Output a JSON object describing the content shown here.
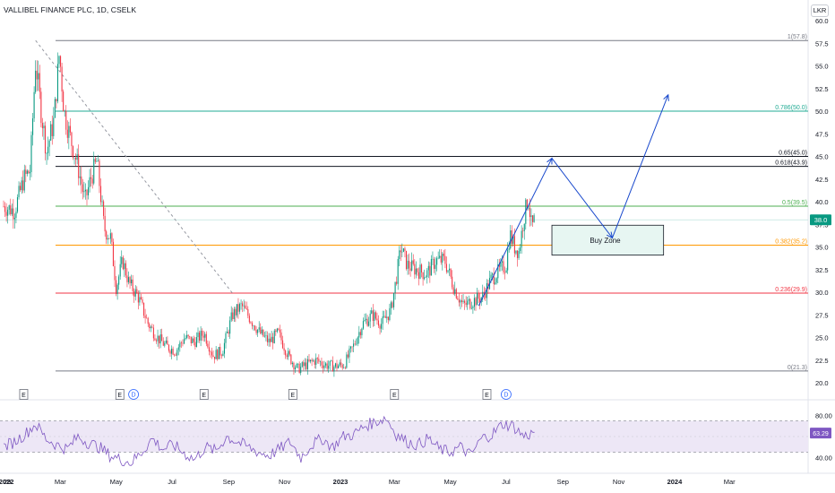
{
  "header": {
    "title": "VALLIBEL FINANCE PLC, 1D, CSELK",
    "currency": "LKR"
  },
  "colors": {
    "up": "#089981",
    "down": "#f23645",
    "fib_100": "#787b86",
    "fib_786": "#22ab94",
    "fib_65": "#131722",
    "fib_618": "#131722",
    "fib_5": "#4caf50",
    "fib_382": "#ff9800",
    "fib_236": "#f23645",
    "fib_0": "#787b86",
    "arrow": "#1848cc",
    "zone_fill": "#e7f6f2",
    "rsi_line": "#7e57c2",
    "rsi_band": "#ede7f6",
    "price_badge": "#089981",
    "rsi_badge": "#7e57c2"
  },
  "chart_data": [
    {
      "type": "candlestick",
      "title": "VALLIBEL FINANCE PLC, 1D, CSELK",
      "currency": "LKR",
      "x_tick_labels": [
        "29",
        "2022",
        "Mar",
        "May",
        "Jul",
        "Sep",
        "Nov",
        "2023",
        "Mar",
        "May",
        "Jul",
        "Sep",
        "Nov",
        "2024",
        "Mar"
      ],
      "x_tick_bold": [
        "2022",
        "2023",
        "2024"
      ],
      "y_tick_labels": [
        "20.0",
        "22.5",
        "25.0",
        "27.5",
        "30.0",
        "32.5",
        "35.0",
        "37.5",
        "40.0",
        "42.5",
        "45.0",
        "47.5",
        "50.0",
        "52.5",
        "55.0",
        "57.5",
        "60.0"
      ],
      "ylim": [
        20.0,
        60.0
      ],
      "last_price": "38.0",
      "price_path": [
        [
          "2021-12-29",
          39.5
        ],
        [
          "2022-01-10",
          39.0
        ],
        [
          "2022-01-20",
          42.5
        ],
        [
          "2022-01-27",
          43.5
        ],
        [
          "2022-02-02",
          55.5
        ],
        [
          "2022-02-08",
          50.0
        ],
        [
          "2022-02-14",
          45.5
        ],
        [
          "2022-02-22",
          49.0
        ],
        [
          "2022-02-28",
          56.5
        ],
        [
          "2022-03-05",
          50.0
        ],
        [
          "2022-03-12",
          47.0
        ],
        [
          "2022-03-20",
          44.0
        ],
        [
          "2022-03-28",
          40.0
        ],
        [
          "2022-04-03",
          42.5
        ],
        [
          "2022-04-10",
          44.5
        ],
        [
          "2022-04-18",
          37.0
        ],
        [
          "2022-04-25",
          36.0
        ],
        [
          "2022-05-01",
          30.5
        ],
        [
          "2022-05-08",
          33.5
        ],
        [
          "2022-05-15",
          31.0
        ],
        [
          "2022-05-25",
          29.5
        ],
        [
          "2022-06-05",
          26.5
        ],
        [
          "2022-06-15",
          25.0
        ],
        [
          "2022-06-25",
          24.0
        ],
        [
          "2022-07-05",
          23.5
        ],
        [
          "2022-07-15",
          25.0
        ],
        [
          "2022-07-25",
          24.5
        ],
        [
          "2022-08-05",
          25.5
        ],
        [
          "2022-08-15",
          23.0
        ],
        [
          "2022-08-25",
          23.5
        ],
        [
          "2022-09-05",
          27.5
        ],
        [
          "2022-09-15",
          28.5
        ],
        [
          "2022-09-25",
          27.0
        ],
        [
          "2022-10-05",
          25.5
        ],
        [
          "2022-10-15",
          24.5
        ],
        [
          "2022-10-25",
          25.5
        ],
        [
          "2022-11-05",
          23.0
        ],
        [
          "2022-11-15",
          21.5
        ],
        [
          "2022-11-25",
          22.0
        ],
        [
          "2022-12-05",
          22.5
        ],
        [
          "2022-12-15",
          22.0
        ],
        [
          "2022-12-25",
          21.8
        ],
        [
          "2023-01-05",
          22.0
        ],
        [
          "2023-01-15",
          24.0
        ],
        [
          "2023-01-25",
          26.5
        ],
        [
          "2023-02-05",
          27.5
        ],
        [
          "2023-02-15",
          26.5
        ],
        [
          "2023-02-25",
          28.0
        ],
        [
          "2023-03-03",
          31.5
        ],
        [
          "2023-03-08",
          35.0
        ],
        [
          "2023-03-15",
          33.0
        ],
        [
          "2023-03-25",
          32.5
        ],
        [
          "2023-04-05",
          32.0
        ],
        [
          "2023-04-15",
          33.5
        ],
        [
          "2023-04-25",
          33.5
        ],
        [
          "2023-05-05",
          30.5
        ],
        [
          "2023-05-15",
          28.5
        ],
        [
          "2023-05-25",
          29.0
        ],
        [
          "2023-06-05",
          29.5
        ],
        [
          "2023-06-15",
          31.5
        ],
        [
          "2023-06-25",
          32.5
        ],
        [
          "2023-07-01",
          33.0
        ],
        [
          "2023-07-05",
          36.5
        ],
        [
          "2023-07-10",
          35.0
        ],
        [
          "2023-07-15",
          34.5
        ],
        [
          "2023-07-20",
          38.0
        ],
        [
          "2023-07-25",
          40.5
        ],
        [
          "2023-07-29",
          37.0
        ],
        [
          "2023-08-01",
          38.0
        ]
      ],
      "fib_levels": [
        {
          "ratio": 1,
          "label": "1(57.8)",
          "price": 57.8,
          "color_key": "fib_100"
        },
        {
          "ratio": 0.786,
          "label": "0.786(50.0)",
          "price": 50.0,
          "color_key": "fib_786"
        },
        {
          "ratio": 0.65,
          "label": "0.65(45.0)",
          "price": 45.0,
          "color_key": "fib_65"
        },
        {
          "ratio": 0.618,
          "label": "0.618(43.9)",
          "price": 43.9,
          "color_key": "fib_618"
        },
        {
          "ratio": 0.5,
          "label": "0.5(39.5)",
          "price": 39.5,
          "color_key": "fib_5"
        },
        {
          "ratio": 0.382,
          "label": "0.382(35.2)",
          "price": 35.2,
          "color_key": "fib_382"
        },
        {
          "ratio": 0.236,
          "label": "0.236(29.9)",
          "price": 29.9,
          "color_key": "fib_236"
        },
        {
          "ratio": 0,
          "label": "0(21.3)",
          "price": 21.3,
          "color_key": "fib_0"
        }
      ],
      "buy_zone": {
        "label": "Buy Zone",
        "from": "2023-08-20",
        "to": "2023-12-20",
        "top": 37.4,
        "bottom": 34.1
      },
      "forecast_path": [
        [
          "2023-06-01",
          28.5
        ],
        [
          "2023-08-20",
          44.8
        ],
        [
          "2023-10-25",
          36.0
        ],
        [
          "2023-12-25",
          51.8
        ]
      ],
      "trend_line": {
        "from": [
          "2022-02-02",
          57.8
        ],
        "to": [
          "2022-09-05",
          29.9
        ]
      },
      "event_markers": [
        {
          "date": "2022-01-20",
          "kind": "E"
        },
        {
          "date": "2022-05-05",
          "kind": "E"
        },
        {
          "date": "2022-05-20",
          "kind": "D"
        },
        {
          "date": "2022-08-05",
          "kind": "E"
        },
        {
          "date": "2022-11-10",
          "kind": "E"
        },
        {
          "date": "2023-03-01",
          "kind": "E"
        },
        {
          "date": "2023-06-10",
          "kind": "E"
        },
        {
          "date": "2023-07-01",
          "kind": "D"
        }
      ]
    },
    {
      "type": "line",
      "series": [
        {
          "name": "",
          "values": [
            50,
            55,
            62,
            72,
            58,
            52,
            48,
            60,
            54,
            50,
            42,
            38,
            35,
            45,
            58,
            48,
            52,
            44,
            38,
            50,
            46,
            60,
            55,
            50,
            45,
            42,
            48,
            55,
            40,
            52,
            58,
            50,
            60,
            62,
            70,
            74,
            78,
            62,
            55,
            52,
            58,
            48,
            45,
            50,
            42,
            58,
            62,
            72,
            70,
            60,
            64
          ]
        }
      ],
      "ylim": [
        30,
        90
      ],
      "y_tick_labels": [
        "40.00",
        "80.00"
      ],
      "band": [
        45,
        75
      ],
      "last_value": "63.29"
    }
  ]
}
